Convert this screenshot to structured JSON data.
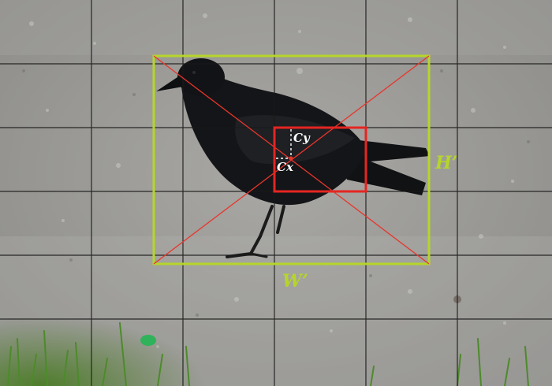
{
  "labels": {
    "width": "W’",
    "height": "H’",
    "center_x": "Cx",
    "center_y": "Cy"
  },
  "colors": {
    "bounding_box": "#b5d629",
    "diagonals": "#e8352b",
    "grid_cell_box": "#e52521",
    "grid_lines": "#1a1a1a",
    "label_text_on_image": "#b5d629",
    "label_text_in_box": "#ffffff",
    "offset_guides": "#ffffff"
  }
}
